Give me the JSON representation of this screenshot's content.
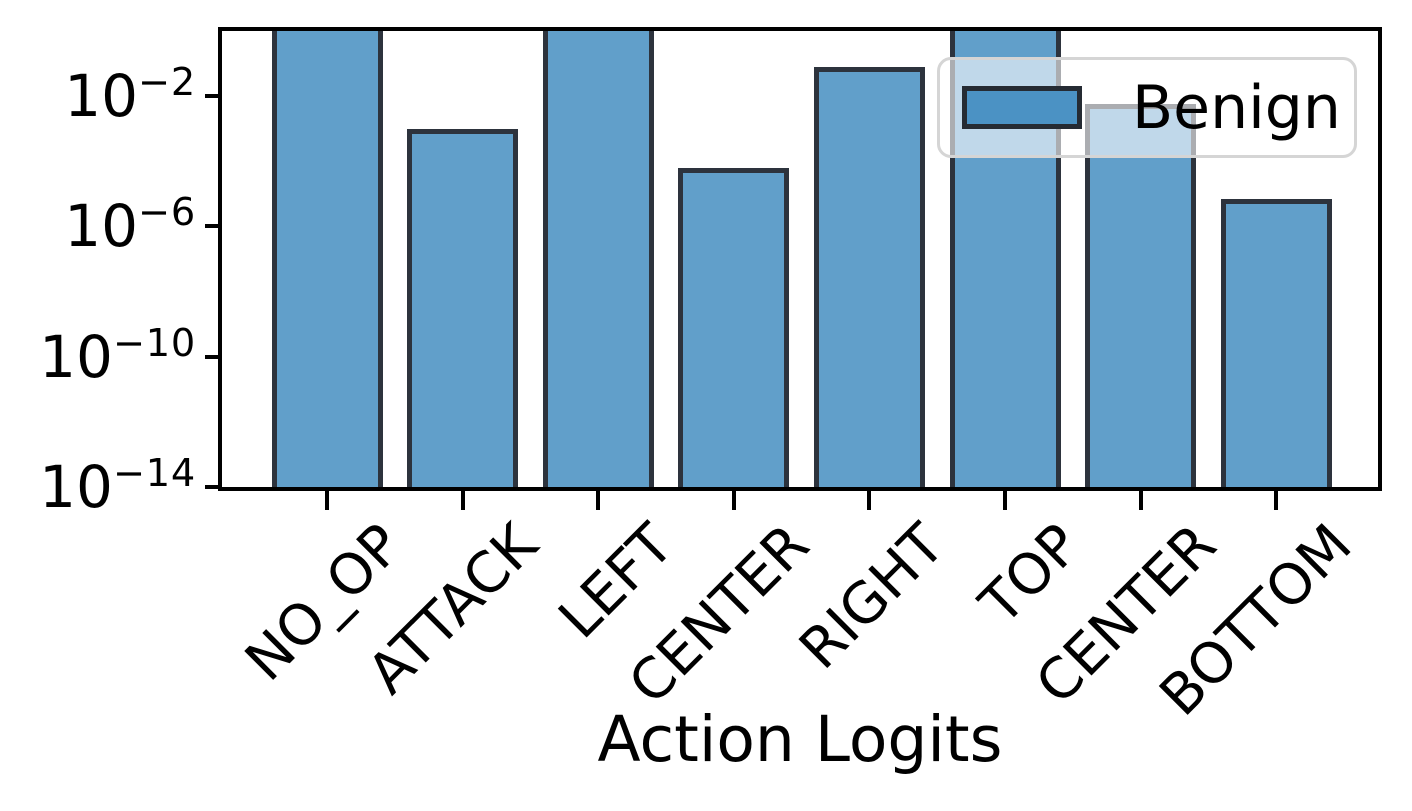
{
  "figure": {
    "xlabel": "Action Logits",
    "background": "#ffffff"
  },
  "legend": {
    "label": "Benign",
    "position": "upper right"
  },
  "yaxis": {
    "scale": "log",
    "ticks": [
      {
        "base": "10",
        "exponent_text": "−2"
      },
      {
        "base": "10",
        "exponent_text": "−6"
      },
      {
        "base": "10",
        "exponent_text": "−10"
      },
      {
        "base": "10",
        "exponent_text": "−14"
      }
    ]
  },
  "xaxis": {
    "labels": [
      "NO_OP",
      "ATTACK",
      "LEFT",
      "CENTER",
      "RIGHT",
      "TOP",
      "CENTER",
      "BOTTOM"
    ]
  },
  "colors": {
    "bar_fill": "#619fca",
    "bar_edge": "#2d333d",
    "swatch_fill": "#4b92c4",
    "swatch_edge": "#252b33",
    "spine": "#000000",
    "legend_border": "#d5d5d5",
    "legend_bg": "rgba(255,255,255,0.6)"
  },
  "chart_data": {
    "type": "bar",
    "title": "",
    "xlabel": "Action Logits",
    "ylabel": "",
    "yscale": "log",
    "ylim": [
      1e-14,
      1
    ],
    "ytick_exponents": [
      -2,
      -6,
      -10,
      -14
    ],
    "grid": false,
    "categories": [
      "NO_OP",
      "ATTACK",
      "LEFT",
      "CENTER",
      "RIGHT",
      "TOP",
      "CENTER",
      "BOTTOM"
    ],
    "series": [
      {
        "name": "Benign",
        "values": [
          0.97,
          0.001,
          0.93,
          6.3e-05,
          0.077,
          0.97,
          0.0058,
          7e-06
        ]
      }
    ],
    "legend": {
      "entries": [
        "Benign"
      ],
      "position": "upper right"
    }
  }
}
